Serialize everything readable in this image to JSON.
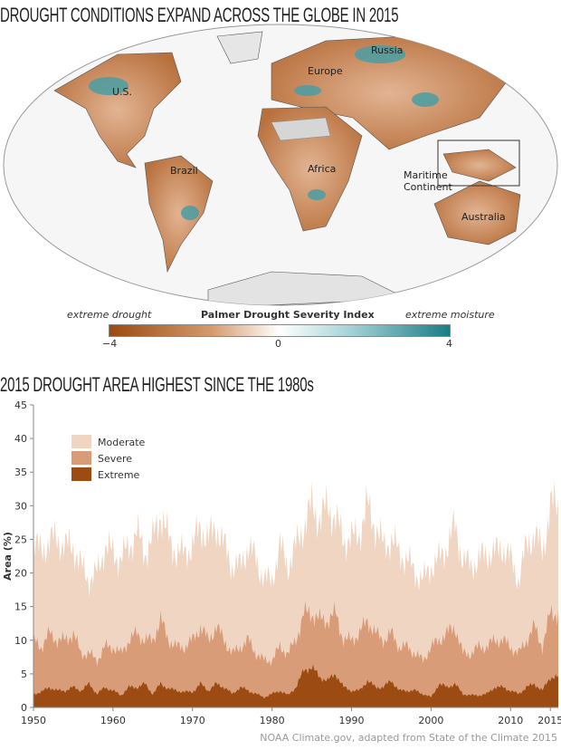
{
  "map": {
    "title": "DROUGHT CONDITIONS EXPAND ACROSS THE GLOBE IN 2015",
    "region_labels": [
      "U.S.",
      "Europe",
      "Russia",
      "Brazil",
      "Africa",
      "Maritime Continent",
      "Australia"
    ],
    "colorbar": {
      "title": "Palmer Drought Severity Index",
      "left_label": "extreme drought",
      "right_label": "extreme moisture",
      "ticks": [
        "−4",
        "0",
        "4"
      ],
      "range": [
        -4,
        4
      ],
      "colors": {
        "drought": "#9a4a10",
        "neutral": "#ffffff",
        "moisture": "#187d86"
      }
    }
  },
  "chart_data": {
    "type": "area",
    "stacked": true,
    "title": "2015 DROUGHT AREA HIGHEST SINCE THE 1980s",
    "ylabel": "Area (%)",
    "xlabel": "",
    "ylim": [
      0,
      45
    ],
    "xlim": [
      1950,
      2016
    ],
    "yticks": [
      "0",
      "5",
      "10",
      "15",
      "20",
      "25",
      "30",
      "35",
      "40",
      "45"
    ],
    "xticks": [
      "1950",
      "1960",
      "1970",
      "1980",
      "1990",
      "2000",
      "2010",
      "2015"
    ],
    "legend_position": "top-left",
    "grid": false,
    "x": [
      1950,
      1951,
      1952,
      1953,
      1954,
      1955,
      1956,
      1957,
      1958,
      1959,
      1960,
      1961,
      1962,
      1963,
      1964,
      1965,
      1966,
      1967,
      1968,
      1969,
      1970,
      1971,
      1972,
      1973,
      1974,
      1975,
      1976,
      1977,
      1978,
      1979,
      1980,
      1981,
      1982,
      1983,
      1984,
      1985,
      1986,
      1987,
      1988,
      1989,
      1990,
      1991,
      1992,
      1993,
      1994,
      1995,
      1996,
      1997,
      1998,
      1999,
      2000,
      2001,
      2002,
      2003,
      2004,
      2005,
      2006,
      2007,
      2008,
      2009,
      2010,
      2011,
      2012,
      2013,
      2014,
      2015
    ],
    "series": [
      {
        "name": "Extreme",
        "color": "#9c4c12",
        "values": [
          2,
          2.3,
          3,
          2.5,
          2.5,
          3,
          2.5,
          3.5,
          2,
          3,
          2.5,
          1.8,
          3,
          3,
          3.5,
          2,
          3.5,
          2.8,
          2.5,
          2.3,
          2.3,
          3.5,
          2.5,
          3.5,
          3,
          2,
          3,
          2.5,
          2,
          1.5,
          2,
          2.5,
          1.8,
          3,
          5.5,
          6,
          4.5,
          4,
          5,
          3,
          2.5,
          2.5,
          4,
          3,
          3,
          4,
          2.5,
          2.5,
          2.5,
          2,
          1.5,
          3.5,
          3,
          3.5,
          2,
          1.8,
          1.8,
          2,
          3,
          3,
          2.5,
          2,
          3,
          3.5,
          2.5,
          4.5
        ]
      },
      {
        "name": "Severe",
        "color": "#d89d78",
        "values": [
          8,
          6.7,
          8,
          7.5,
          7.5,
          8,
          5.5,
          4.5,
          5,
          6,
          6.5,
          6.2,
          7,
          8,
          6.5,
          8,
          9.5,
          7.2,
          6.5,
          6.7,
          7.7,
          8.5,
          7.5,
          8.5,
          7,
          6,
          6,
          7.5,
          6,
          5.5,
          5,
          6.5,
          6.2,
          7,
          8.5,
          8,
          8.5,
          9,
          9,
          7,
          7.5,
          8.5,
          9,
          8,
          7,
          7,
          6.5,
          6.5,
          5.5,
          5,
          7.5,
          6.5,
          8,
          8.5,
          6,
          6.2,
          7.2,
          7,
          7,
          7,
          6.5,
          6,
          7,
          8.5,
          6.5,
          9.5
        ]
      },
      {
        "name": "Moderate",
        "color": "#f0d5c3",
        "values": [
          15,
          14,
          14,
          15,
          14,
          13,
          13,
          11,
          13,
          15,
          14,
          14,
          14,
          15,
          13,
          15,
          16,
          15,
          14,
          14,
          14,
          15,
          15,
          15,
          14,
          13,
          12,
          14,
          14,
          12,
          12,
          15,
          13,
          14,
          13,
          16,
          15,
          17,
          14,
          15,
          15,
          15,
          17,
          16,
          14,
          14,
          14,
          13,
          12,
          12,
          12,
          12,
          13,
          15,
          14,
          13,
          13,
          14,
          13,
          14,
          13,
          11,
          14,
          14,
          14,
          16
        ]
      }
    ]
  },
  "credit": "NOAA Climate.gov, adapted from State of the Climate 2015"
}
